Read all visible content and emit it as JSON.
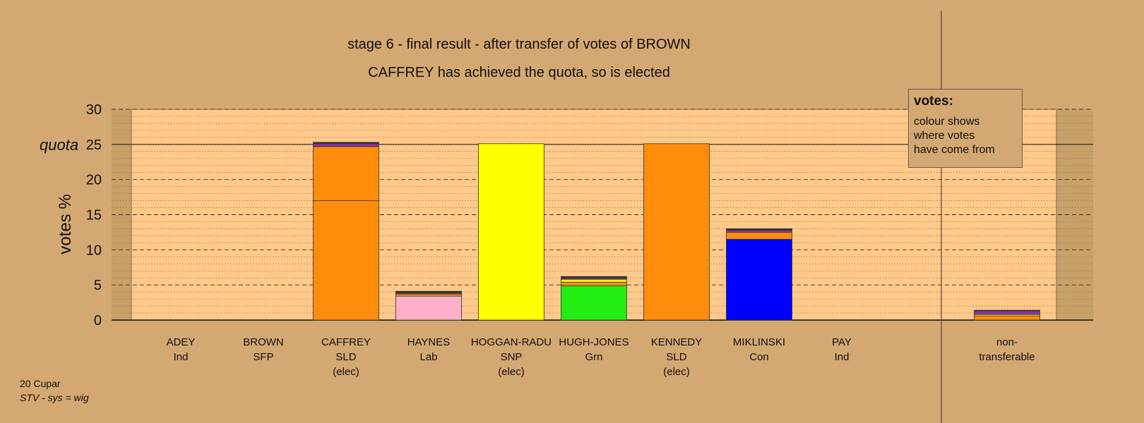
{
  "title": "stage 6 - final result - after transfer of votes of BROWN",
  "subtitle": "CAFFREY has achieved the quota, so is elected",
  "legend": {
    "heading": "votes:",
    "line1": "colour shows",
    "line2": "where votes",
    "line3": "have come from"
  },
  "footer": {
    "ward": "20 Cupar",
    "system": "STV - sys = wig"
  },
  "colors": {
    "background": "#d4a872",
    "plot_area": "#ffc98a",
    "SLD": "#ff8c0a",
    "SNP": "#ffff00",
    "Lab": "#ffb0c8",
    "Grn": "#22ee11",
    "Con": "#0000ff",
    "Ind": "#8833aa",
    "SFP": "#303030"
  },
  "chart_data": {
    "type": "bar",
    "stacked": true,
    "ylabel": "votes %",
    "ylim": [
      0,
      30
    ],
    "yticks": [
      0,
      5,
      10,
      15,
      20,
      25,
      30
    ],
    "quota": 25,
    "quota_label": "quota",
    "grid": true,
    "categories": [
      {
        "name": "ADEY",
        "party": "Ind",
        "status": ""
      },
      {
        "name": "BROWN",
        "party": "SFP",
        "status": ""
      },
      {
        "name": "CAFFREY",
        "party": "SLD",
        "status": "(elec)"
      },
      {
        "name": "HAYNES",
        "party": "Lab",
        "status": ""
      },
      {
        "name": "HOGGAN-RADU",
        "party": "SNP",
        "status": "(elec)"
      },
      {
        "name": "HUGH-JONES",
        "party": "Grn",
        "status": ""
      },
      {
        "name": "KENNEDY",
        "party": "SLD",
        "status": "(elec)"
      },
      {
        "name": "MIKLINSKI",
        "party": "Con",
        "status": ""
      },
      {
        "name": "PAY",
        "party": "Ind",
        "status": ""
      },
      {
        "name": "non-",
        "party": "transferable",
        "status": ""
      }
    ],
    "stacks": [
      [],
      [],
      [
        {
          "source": "SLD",
          "value": 17.0
        },
        {
          "source": "SLD",
          "value": 7.7
        },
        {
          "source": "Ind",
          "value": 0.4
        },
        {
          "source": "SFP",
          "value": 0.2
        }
      ],
      [
        {
          "source": "Lab",
          "value": 3.4
        },
        {
          "source": "SLD",
          "value": 0.3
        },
        {
          "source": "SNP",
          "value": 0.1
        },
        {
          "source": "SFP",
          "value": 0.3
        }
      ],
      [
        {
          "source": "SNP",
          "value": 25.1
        }
      ],
      [
        {
          "source": "Grn",
          "value": 4.9
        },
        {
          "source": "SLD",
          "value": 0.5
        },
        {
          "source": "SNP",
          "value": 0.4
        },
        {
          "source": "Ind",
          "value": 0.2
        },
        {
          "source": "SFP",
          "value": 0.2
        }
      ],
      [
        {
          "source": "SLD",
          "value": 25.1
        }
      ],
      [
        {
          "source": "Con",
          "value": 11.5
        },
        {
          "source": "SLD",
          "value": 1.0
        },
        {
          "source": "Ind",
          "value": 0.3
        },
        {
          "source": "SFP",
          "value": 0.2
        }
      ],
      [],
      [
        {
          "source": "SLD",
          "value": 0.6
        },
        {
          "source": "SNP",
          "value": 0.2
        },
        {
          "source": "Ind",
          "value": 0.5
        },
        {
          "source": "SFP",
          "value": 0.1
        }
      ]
    ]
  }
}
